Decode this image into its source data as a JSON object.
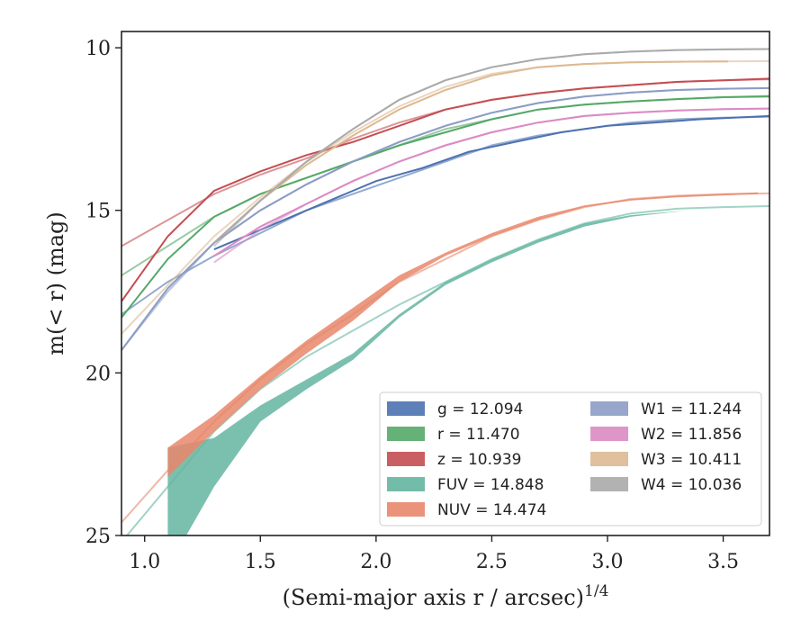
{
  "chart_data": {
    "type": "line",
    "title": "",
    "xlabel": "(Semi-major axis r / arcsec)",
    "xlabel_exponent": "1/4",
    "ylabel": "m(< r) (mag)",
    "xlim": [
      0.9,
      3.7
    ],
    "ylim": [
      25,
      9.5
    ],
    "y_inverted": true,
    "x_ticks": [
      "1.0",
      "1.5",
      "2.0",
      "2.5",
      "3.0",
      "3.5"
    ],
    "y_ticks": [
      "10",
      "15",
      "20",
      "25"
    ],
    "grid": false,
    "legend_position": "lower-right",
    "series": [
      {
        "name": "g = 12.094",
        "color": "#4c72b0",
        "model": [
          [
            0.9,
            18.2
          ],
          [
            1.1,
            17.2
          ],
          [
            1.3,
            16.4
          ],
          [
            1.5,
            15.7
          ],
          [
            1.7,
            15.0
          ],
          [
            1.9,
            14.5
          ],
          [
            2.1,
            14.0
          ],
          [
            2.3,
            13.5
          ],
          [
            2.5,
            13.0
          ],
          [
            2.7,
            12.7
          ],
          [
            2.9,
            12.5
          ],
          [
            3.1,
            12.3
          ],
          [
            3.3,
            12.2
          ],
          [
            3.5,
            12.15
          ],
          [
            3.7,
            12.12
          ]
        ],
        "data": [
          [
            1.3,
            16.2
          ],
          [
            1.5,
            15.6
          ],
          [
            1.7,
            15.0
          ],
          [
            1.9,
            14.4
          ],
          [
            2.0,
            14.1
          ],
          [
            2.2,
            13.7
          ],
          [
            2.4,
            13.2
          ],
          [
            2.6,
            12.9
          ],
          [
            2.8,
            12.6
          ],
          [
            3.0,
            12.4
          ],
          [
            3.2,
            12.3
          ],
          [
            3.4,
            12.2
          ],
          [
            3.7,
            12.1
          ]
        ]
      },
      {
        "name": "r = 11.470",
        "color": "#55a868",
        "model": [
          [
            0.9,
            17.0
          ],
          [
            1.1,
            16.1
          ],
          [
            1.3,
            15.2
          ],
          [
            1.5,
            14.5
          ],
          [
            1.7,
            14.0
          ],
          [
            1.9,
            13.5
          ],
          [
            2.1,
            13.0
          ],
          [
            2.3,
            12.5
          ],
          [
            2.5,
            12.2
          ],
          [
            2.7,
            11.9
          ],
          [
            2.9,
            11.75
          ],
          [
            3.1,
            11.65
          ],
          [
            3.3,
            11.58
          ],
          [
            3.5,
            11.52
          ],
          [
            3.7,
            11.48
          ]
        ],
        "data": [
          [
            0.9,
            18.3
          ],
          [
            1.1,
            16.5
          ],
          [
            1.3,
            15.2
          ],
          [
            1.5,
            14.5
          ],
          [
            1.7,
            14.0
          ],
          [
            1.9,
            13.5
          ],
          [
            2.1,
            13.0
          ],
          [
            2.3,
            12.6
          ],
          [
            2.5,
            12.2
          ],
          [
            2.7,
            11.9
          ],
          [
            2.9,
            11.75
          ],
          [
            3.1,
            11.65
          ],
          [
            3.3,
            11.58
          ],
          [
            3.5,
            11.52
          ],
          [
            3.7,
            11.5
          ]
        ]
      },
      {
        "name": "z = 10.939",
        "color": "#c44e52",
        "model": [
          [
            0.9,
            16.1
          ],
          [
            1.1,
            15.3
          ],
          [
            1.3,
            14.5
          ],
          [
            1.5,
            13.9
          ],
          [
            1.7,
            13.4
          ],
          [
            1.9,
            12.8
          ],
          [
            2.1,
            12.3
          ],
          [
            2.3,
            11.9
          ],
          [
            2.5,
            11.6
          ],
          [
            2.7,
            11.4
          ],
          [
            2.9,
            11.25
          ],
          [
            3.1,
            11.15
          ],
          [
            3.3,
            11.05
          ],
          [
            3.5,
            11.0
          ],
          [
            3.7,
            10.97
          ]
        ],
        "data": [
          [
            0.9,
            17.8
          ],
          [
            1.1,
            15.8
          ],
          [
            1.3,
            14.4
          ],
          [
            1.5,
            13.8
          ],
          [
            1.7,
            13.3
          ],
          [
            1.9,
            12.9
          ],
          [
            2.1,
            12.4
          ],
          [
            2.3,
            11.9
          ],
          [
            2.5,
            11.6
          ],
          [
            2.7,
            11.4
          ],
          [
            2.9,
            11.25
          ],
          [
            3.1,
            11.15
          ],
          [
            3.3,
            11.05
          ],
          [
            3.5,
            11.0
          ],
          [
            3.7,
            10.95
          ]
        ]
      },
      {
        "name": "FUV = 14.848",
        "color": "#64b5a0",
        "model": [
          [
            0.9,
            25.2
          ],
          [
            1.1,
            23.5
          ],
          [
            1.3,
            21.8
          ],
          [
            1.5,
            20.5
          ],
          [
            1.7,
            19.5
          ],
          [
            1.9,
            18.7
          ],
          [
            2.1,
            17.9
          ],
          [
            2.3,
            17.2
          ],
          [
            2.5,
            16.5
          ],
          [
            2.7,
            15.9
          ],
          [
            2.9,
            15.4
          ],
          [
            3.1,
            15.1
          ],
          [
            3.3,
            14.95
          ],
          [
            3.5,
            14.9
          ],
          [
            3.7,
            14.87
          ]
        ],
        "band_upper": [
          [
            1.1,
            22.3
          ],
          [
            1.3,
            22.0
          ],
          [
            1.5,
            21.0
          ],
          [
            1.7,
            20.2
          ],
          [
            1.9,
            19.4
          ],
          [
            2.1,
            18.2
          ],
          [
            2.3,
            17.2
          ],
          [
            2.5,
            16.5
          ],
          [
            2.7,
            15.9
          ],
          [
            2.9,
            15.4
          ],
          [
            3.1,
            15.15
          ],
          [
            3.35,
            15.0
          ]
        ],
        "band_lower": [
          [
            1.1,
            26.0
          ],
          [
            1.3,
            23.5
          ],
          [
            1.5,
            21.5
          ],
          [
            1.7,
            20.5
          ],
          [
            1.9,
            19.6
          ],
          [
            2.1,
            18.3
          ],
          [
            2.3,
            17.3
          ],
          [
            2.5,
            16.6
          ],
          [
            2.7,
            16.0
          ],
          [
            2.9,
            15.5
          ],
          [
            3.1,
            15.2
          ],
          [
            3.35,
            15.0
          ]
        ]
      },
      {
        "name": "NUV = 14.474",
        "color": "#e8876b",
        "model": [
          [
            0.9,
            24.6
          ],
          [
            1.1,
            23.0
          ],
          [
            1.3,
            21.5
          ],
          [
            1.5,
            20.2
          ],
          [
            1.7,
            19.1
          ],
          [
            1.9,
            18.2
          ],
          [
            2.1,
            17.2
          ],
          [
            2.3,
            16.5
          ],
          [
            2.5,
            15.8
          ],
          [
            2.7,
            15.3
          ],
          [
            2.9,
            14.9
          ],
          [
            3.1,
            14.65
          ],
          [
            3.3,
            14.55
          ],
          [
            3.5,
            14.5
          ],
          [
            3.7,
            14.48
          ]
        ],
        "band_upper": [
          [
            1.1,
            22.3
          ],
          [
            1.3,
            21.3
          ],
          [
            1.5,
            20.1
          ],
          [
            1.7,
            19.0
          ],
          [
            1.9,
            18.0
          ],
          [
            2.1,
            17.0
          ],
          [
            2.3,
            16.3
          ],
          [
            2.5,
            15.7
          ],
          [
            2.7,
            15.2
          ],
          [
            2.9,
            14.85
          ],
          [
            3.1,
            14.65
          ],
          [
            3.3,
            14.55
          ],
          [
            3.65,
            14.45
          ]
        ],
        "band_lower": [
          [
            1.1,
            23.2
          ],
          [
            1.3,
            21.8
          ],
          [
            1.5,
            20.5
          ],
          [
            1.7,
            19.4
          ],
          [
            1.9,
            18.4
          ],
          [
            2.1,
            17.2
          ],
          [
            2.3,
            16.4
          ],
          [
            2.5,
            15.8
          ],
          [
            2.7,
            15.3
          ],
          [
            2.9,
            14.9
          ],
          [
            3.1,
            14.7
          ],
          [
            3.3,
            14.6
          ],
          [
            3.65,
            14.5
          ]
        ]
      },
      {
        "name": "W1 = 11.244",
        "color": "#8c9cc4",
        "model": [
          [
            0.9,
            19.3
          ],
          [
            1.1,
            17.5
          ],
          [
            1.3,
            16.0
          ],
          [
            1.5,
            15.0
          ],
          [
            1.7,
            14.2
          ],
          [
            1.9,
            13.5
          ],
          [
            2.1,
            12.9
          ],
          [
            2.3,
            12.4
          ],
          [
            2.5,
            12.0
          ],
          [
            2.7,
            11.7
          ],
          [
            2.9,
            11.5
          ],
          [
            3.1,
            11.38
          ],
          [
            3.3,
            11.3
          ],
          [
            3.5,
            11.26
          ],
          [
            3.7,
            11.24
          ]
        ],
        "data": [
          [
            0.9,
            19.3
          ],
          [
            1.1,
            17.4
          ],
          [
            1.3,
            16.0
          ],
          [
            1.5,
            15.0
          ],
          [
            1.7,
            14.2
          ],
          [
            1.9,
            13.5
          ],
          [
            2.1,
            12.9
          ],
          [
            2.3,
            12.4
          ],
          [
            2.5,
            12.0
          ],
          [
            2.7,
            11.7
          ],
          [
            2.9,
            11.5
          ],
          [
            3.1,
            11.38
          ],
          [
            3.3,
            11.3
          ],
          [
            3.5,
            11.26
          ],
          [
            3.7,
            11.24
          ]
        ]
      },
      {
        "name": "W2 = 11.856",
        "color": "#da8bc3",
        "model": [
          [
            1.3,
            16.6
          ],
          [
            1.5,
            15.6
          ],
          [
            1.7,
            14.8
          ],
          [
            1.9,
            14.1
          ],
          [
            2.1,
            13.5
          ],
          [
            2.3,
            13.0
          ],
          [
            2.5,
            12.6
          ],
          [
            2.7,
            12.3
          ],
          [
            2.9,
            12.1
          ],
          [
            3.1,
            12.0
          ],
          [
            3.3,
            11.93
          ],
          [
            3.5,
            11.89
          ],
          [
            3.7,
            11.87
          ]
        ],
        "data": [
          [
            1.3,
            16.4
          ],
          [
            1.5,
            15.5
          ],
          [
            1.7,
            14.8
          ],
          [
            1.9,
            14.1
          ],
          [
            2.1,
            13.5
          ],
          [
            2.3,
            13.0
          ],
          [
            2.5,
            12.6
          ],
          [
            2.7,
            12.3
          ],
          [
            2.9,
            12.1
          ],
          [
            3.1,
            12.0
          ],
          [
            3.3,
            11.93
          ],
          [
            3.5,
            11.89
          ],
          [
            3.7,
            11.87
          ]
        ]
      },
      {
        "name": "W3 = 10.411",
        "color": "#ddb992",
        "model": [
          [
            0.9,
            18.8
          ],
          [
            1.1,
            17.3
          ],
          [
            1.3,
            15.8
          ],
          [
            1.5,
            14.6
          ],
          [
            1.7,
            13.5
          ],
          [
            1.9,
            12.6
          ],
          [
            2.1,
            11.8
          ],
          [
            2.3,
            11.2
          ],
          [
            2.5,
            10.8
          ],
          [
            2.7,
            10.6
          ],
          [
            2.9,
            10.5
          ],
          [
            3.1,
            10.45
          ],
          [
            3.3,
            10.43
          ],
          [
            3.5,
            10.42
          ],
          [
            3.7,
            10.41
          ]
        ],
        "data": [
          [
            1.3,
            16.0
          ],
          [
            1.5,
            14.7
          ],
          [
            1.7,
            13.6
          ],
          [
            1.9,
            12.7
          ],
          [
            2.1,
            11.9
          ],
          [
            2.3,
            11.3
          ],
          [
            2.5,
            10.85
          ],
          [
            2.7,
            10.6
          ],
          [
            2.9,
            10.5
          ],
          [
            3.1,
            10.45
          ],
          [
            3.3,
            10.43
          ],
          [
            3.52,
            10.42
          ]
        ]
      },
      {
        "name": "W4 = 10.036",
        "color": "#aaaaaa",
        "model": [
          [
            1.3,
            16.1
          ],
          [
            1.5,
            14.7
          ],
          [
            1.7,
            13.5
          ],
          [
            1.9,
            12.5
          ],
          [
            2.1,
            11.6
          ],
          [
            2.3,
            11.0
          ],
          [
            2.5,
            10.6
          ],
          [
            2.7,
            10.35
          ],
          [
            2.9,
            10.2
          ],
          [
            3.1,
            10.12
          ],
          [
            3.3,
            10.07
          ],
          [
            3.5,
            10.05
          ],
          [
            3.7,
            10.04
          ]
        ],
        "data": [
          [
            1.3,
            16.0
          ],
          [
            1.5,
            14.7
          ],
          [
            1.7,
            13.5
          ],
          [
            1.9,
            12.5
          ],
          [
            2.1,
            11.6
          ],
          [
            2.3,
            11.0
          ],
          [
            2.5,
            10.6
          ],
          [
            2.7,
            10.35
          ],
          [
            2.9,
            10.2
          ],
          [
            3.1,
            10.12
          ],
          [
            3.3,
            10.07
          ],
          [
            3.5,
            10.05
          ],
          [
            3.7,
            10.04
          ]
        ]
      }
    ]
  }
}
